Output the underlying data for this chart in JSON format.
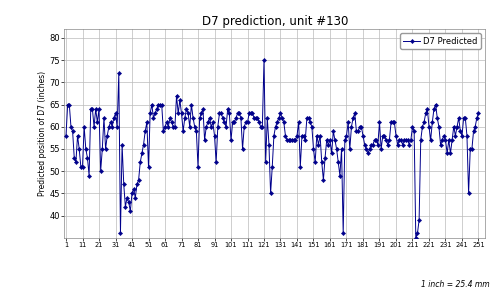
{
  "title": "D7 prediction, unit #130",
  "ylabel": "Predicted position of D7 (inches)",
  "xlabel_note": "1 inch = 25.4 mm",
  "ylim": [
    35,
    82
  ],
  "yticks": [
    40,
    45,
    50,
    55,
    60,
    65,
    70,
    75,
    80
  ],
  "ytick_labels": [
    "40",
    "45",
    "50",
    "55",
    "60",
    "65",
    "70",
    "75",
    "80"
  ],
  "xticks": [
    1,
    11,
    21,
    31,
    41,
    51,
    61,
    71,
    81,
    91,
    101,
    111,
    121,
    131,
    141,
    151,
    161,
    171,
    181,
    191,
    201,
    211,
    221,
    231,
    241,
    251
  ],
  "xlim": [
    0,
    255
  ],
  "line_color": "#00008B",
  "marker": "D",
  "markersize": 2.2,
  "linewidth": 0.7,
  "legend_label": "D7 Predicted",
  "background_color": "#ffffff",
  "plot_bg": "#ffffff",
  "y_values": [
    58,
    65,
    65,
    60,
    59,
    53,
    52,
    58,
    55,
    51,
    51,
    60,
    55,
    53,
    49,
    64,
    64,
    60,
    64,
    61,
    64,
    50,
    55,
    62,
    55,
    58,
    60,
    61,
    60,
    62,
    63,
    60,
    72,
    36,
    56,
    47,
    42,
    44,
    43,
    41,
    45,
    46,
    44,
    47,
    48,
    52,
    54,
    56,
    59,
    61,
    51,
    63,
    65,
    62,
    63,
    64,
    65,
    65,
    65,
    59,
    60,
    61,
    60,
    62,
    61,
    60,
    60,
    67,
    63,
    66,
    63,
    59,
    62,
    64,
    63,
    60,
    65,
    62,
    60,
    59,
    51,
    62,
    63,
    64,
    57,
    60,
    61,
    62,
    60,
    61,
    58,
    52,
    60,
    63,
    63,
    62,
    61,
    60,
    64,
    63,
    57,
    61,
    61,
    62,
    63,
    63,
    62,
    55,
    60,
    61,
    61,
    63,
    63,
    63,
    62,
    62,
    62,
    61,
    60,
    60,
    75,
    52,
    62,
    56,
    45,
    51,
    58,
    60,
    61,
    62,
    63,
    62,
    61,
    58,
    57,
    57,
    57,
    57,
    57,
    57,
    58,
    61,
    51,
    58,
    58,
    57,
    62,
    62,
    61,
    60,
    55,
    52,
    58,
    56,
    58,
    52,
    48,
    53,
    57,
    56,
    57,
    54,
    59,
    57,
    55,
    52,
    49,
    55,
    36,
    57,
    58,
    61,
    55,
    60,
    62,
    63,
    59,
    59,
    60,
    60,
    58,
    56,
    55,
    54,
    55,
    56,
    56,
    57,
    57,
    56,
    61,
    55,
    58,
    58,
    57,
    56,
    57,
    61,
    61,
    61,
    58,
    56,
    57,
    57,
    56,
    57,
    57,
    57,
    56,
    57,
    60,
    59,
    35,
    36,
    39,
    57,
    60,
    61,
    63,
    64,
    60,
    57,
    61,
    64,
    65,
    62,
    60,
    56,
    57,
    58,
    57,
    54,
    57,
    54,
    57,
    60,
    58,
    60,
    62,
    59,
    58,
    62,
    62,
    58,
    45,
    55,
    55,
    59,
    60,
    62,
    63
  ]
}
